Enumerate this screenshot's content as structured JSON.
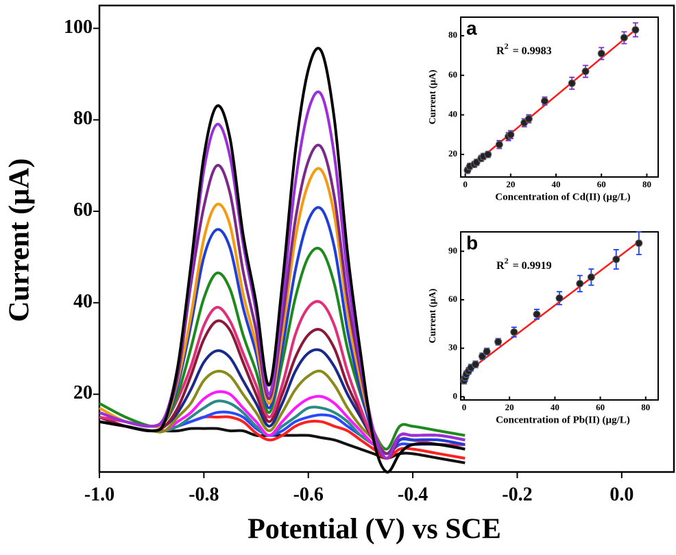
{
  "chart_data": [
    {
      "type": "line",
      "x_label": "Potential (V) vs SCE",
      "y_label": "Current (μA)",
      "x": [
        -1.0,
        -0.95,
        -0.9,
        -0.875,
        -0.85,
        -0.825,
        -0.8,
        -0.775,
        -0.75,
        -0.725,
        -0.7,
        -0.675,
        -0.65,
        -0.625,
        -0.6,
        -0.575,
        -0.55,
        -0.525,
        -0.5,
        -0.475,
        -0.45,
        -0.425,
        -0.4,
        -0.35,
        -0.3
      ],
      "series": [
        {
          "color": "#000000",
          "values": [
            14,
            13,
            12,
            14,
            26,
            48,
            72,
            83,
            76,
            55,
            40,
            22,
            44,
            73,
            91,
            95,
            80,
            51,
            29,
            10,
            3,
            7,
            9,
            9,
            8
          ]
        },
        {
          "color": "#9b30d9",
          "values": [
            16,
            14,
            13,
            15,
            26,
            46,
            69,
            79,
            72,
            53,
            38,
            20,
            40,
            66,
            82,
            85.5,
            72,
            46,
            27,
            12,
            6,
            11,
            11,
            11,
            10
          ]
        },
        {
          "color": "#7b2a8a",
          "values": [
            16,
            14,
            13,
            15,
            24,
            44,
            61,
            70,
            64,
            47,
            34,
            19,
            36,
            58,
            71,
            74,
            63,
            41,
            25,
            12,
            7,
            11,
            11,
            11,
            10
          ]
        },
        {
          "color": "#f39c12",
          "values": [
            17,
            14,
            13,
            14,
            23,
            37,
            54,
            61.5,
            57,
            42,
            31,
            18,
            33,
            54,
            66,
            69,
            59,
            38,
            23,
            12,
            7,
            11,
            11,
            11,
            10
          ]
        },
        {
          "color": "#1f3fd6",
          "values": [
            16,
            14,
            13,
            14,
            22,
            35,
            50,
            56,
            52,
            39,
            29,
            17,
            30,
            47,
            58,
            60.5,
            52,
            34,
            21,
            11,
            7,
            10,
            10,
            10,
            9
          ]
        },
        {
          "color": "#1e8a1e",
          "values": [
            18,
            15,
            13,
            14,
            20,
            30,
            41,
            46.5,
            43,
            33,
            25,
            16,
            27,
            41,
            50,
            51.5,
            44,
            30,
            20,
            12,
            8,
            13,
            13,
            12,
            11
          ]
        },
        {
          "color": "#e0307a",
          "values": [
            15,
            14,
            13,
            14,
            19,
            26,
            35,
            39,
            36,
            29,
            22,
            15,
            22,
            33,
            39,
            40,
            35,
            25,
            17,
            10,
            7,
            10,
            10,
            9,
            9
          ]
        },
        {
          "color": "#8b1a3a",
          "values": [
            15,
            13,
            12,
            13,
            17,
            24,
            32,
            36,
            34,
            27,
            20,
            14,
            20,
            28,
            33,
            34,
            30,
            22,
            16,
            10,
            6,
            10,
            10,
            9,
            9
          ]
        },
        {
          "color": "#1a2a8a",
          "values": [
            15,
            13,
            12,
            13,
            16,
            21,
            27,
            29.5,
            28,
            23,
            18,
            13,
            18,
            25,
            29,
            29.5,
            26,
            20,
            15,
            10,
            6,
            10,
            10,
            9,
            9
          ]
        },
        {
          "color": "#8b8b1a",
          "values": [
            15,
            13,
            12,
            12,
            15,
            18,
            23,
            25,
            24,
            20,
            16,
            12,
            16,
            21,
            24,
            25,
            22,
            17,
            13,
            10,
            6,
            10,
            10,
            9,
            9
          ]
        },
        {
          "color": "#ff1aff",
          "values": [
            15,
            13,
            12,
            12,
            14,
            16,
            19,
            20.5,
            20,
            17,
            14,
            11,
            14,
            17,
            19,
            19.5,
            18,
            15,
            12,
            9,
            7,
            10,
            10,
            9,
            9
          ]
        },
        {
          "color": "#2a8a8a",
          "values": [
            14,
            13,
            12,
            12,
            13,
            15,
            17,
            18.5,
            18,
            16,
            13,
            11,
            13,
            15,
            17,
            17,
            16,
            14,
            11,
            9,
            7,
            10,
            10,
            9,
            8
          ]
        },
        {
          "color": "#2a4aff",
          "values": [
            14,
            13,
            12,
            12,
            13,
            14,
            15,
            16,
            16,
            15,
            12.5,
            11,
            12,
            14,
            15,
            15.5,
            15,
            13,
            11,
            9,
            7,
            9,
            9,
            9,
            8
          ]
        },
        {
          "color": "#ff2020",
          "values": [
            14,
            13,
            12,
            12,
            13,
            14,
            15,
            15,
            15,
            14,
            11.5,
            10,
            11,
            13,
            14,
            14,
            13,
            12,
            10,
            8,
            6,
            8,
            8,
            7,
            6
          ]
        },
        {
          "color": "#111111",
          "values": [
            14,
            13,
            12,
            12,
            12,
            12.5,
            12.5,
            12.5,
            12,
            12,
            11,
            11,
            11,
            11,
            11,
            10.5,
            10,
            9,
            8,
            7,
            6,
            7,
            7,
            6,
            5
          ]
        }
      ],
      "xlim": [
        -1.0,
        0.1
      ],
      "ylim": [
        3,
        105
      ],
      "xticks": [
        {
          "value": -1.0,
          "label": "-1.0"
        },
        -0.8,
        -0.6,
        -0.4,
        -0.2,
        {
          "value": 0,
          "label": "0.0"
        }
      ],
      "yticks": [
        20,
        40,
        60,
        80,
        100
      ]
    },
    {
      "type": "scatter",
      "label": "a",
      "annotation": {
        "base": "R",
        "sup": "2",
        "text": "= 0.9983"
      },
      "x_label": "Concentration of Cd(II) (µg/L)",
      "y_label": "Current (µA)",
      "x": [
        1,
        2,
        4,
        5,
        7,
        8,
        10,
        15,
        19,
        20,
        26,
        28,
        35,
        47,
        53,
        60,
        70,
        75
      ],
      "values": [
        12,
        14,
        15,
        16,
        18,
        19,
        20,
        25,
        29,
        30,
        36,
        38,
        47,
        56,
        62,
        71,
        79,
        83
      ],
      "errors": [
        1.5,
        1.5,
        1.5,
        1.5,
        1.5,
        1.5,
        1.5,
        2,
        2,
        2,
        2,
        2,
        2,
        3,
        3,
        3,
        3,
        3.5
      ],
      "color": "#222222",
      "error_color": "#7b2fbe",
      "fit": {
        "color": "#ff1a1a",
        "x": [
          0,
          76
        ],
        "y": [
          11.5,
          84
        ]
      },
      "xlim": [
        -2,
        85
      ],
      "ylim": [
        8.6,
        89.4
      ],
      "xticks": [
        0,
        20,
        40,
        60,
        80
      ],
      "yticks": [
        20,
        40,
        60,
        80
      ]
    },
    {
      "type": "scatter",
      "label": "b",
      "annotation": {
        "base": "R",
        "sup": "2",
        "text": "= 0.9919"
      },
      "x_label": "Concentration of Pb(II) (µg/L)",
      "y_label": "Current (µA)",
      "x": [
        0,
        0.5,
        1,
        2,
        3,
        5,
        8,
        10,
        15,
        22,
        32,
        42,
        51,
        56,
        67,
        77
      ],
      "values": [
        10,
        12,
        14,
        16,
        18,
        20,
        25,
        28,
        34,
        40,
        51,
        61,
        70,
        74,
        85,
        95
      ],
      "errors": [
        2,
        2,
        2,
        2,
        2,
        2,
        2,
        2,
        2,
        3,
        3,
        4,
        5,
        5,
        6,
        7
      ],
      "color": "#222222",
      "error_color": "#1f3fff",
      "fit": {
        "color": "#ff1a1a",
        "x": [
          1,
          77
        ],
        "y": [
          15,
          96
        ]
      },
      "xlim": [
        -1.5,
        85.5
      ],
      "ylim": [
        -2,
        102
      ],
      "xticks": [
        0,
        20,
        40,
        60,
        80
      ],
      "yticks": [
        0,
        30,
        60,
        90
      ]
    }
  ]
}
